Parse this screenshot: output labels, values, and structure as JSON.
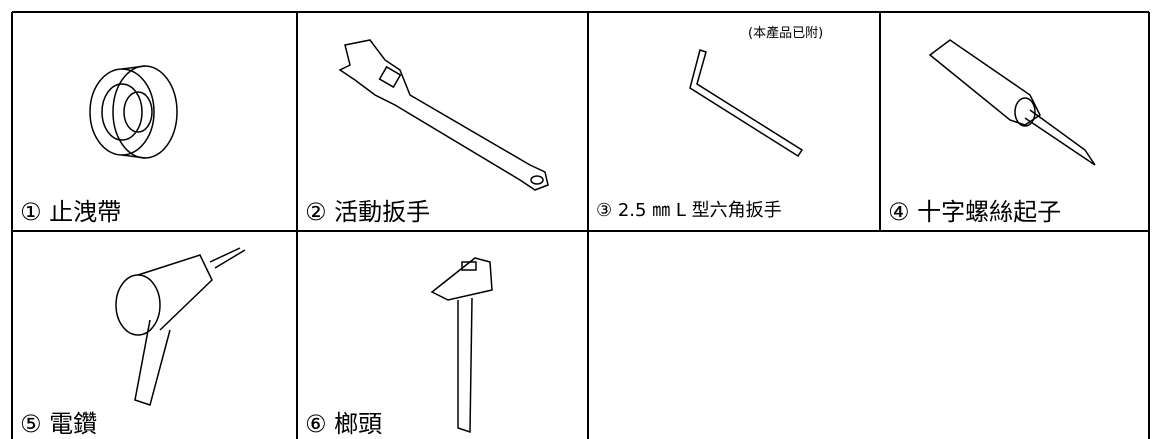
{
  "cells": [
    {
      "label": "① 止洩帶"
    },
    {
      "label": "② 活動扳手"
    },
    {
      "note": "(本產品已附)",
      "label": "③ 2.5 ㎜ L 型六角扳手"
    },
    {
      "label": "④ 十字螺絲起子"
    },
    {
      "label": "⑤ 電鑽"
    },
    {
      "label": "⑥ 榔頭"
    }
  ]
}
